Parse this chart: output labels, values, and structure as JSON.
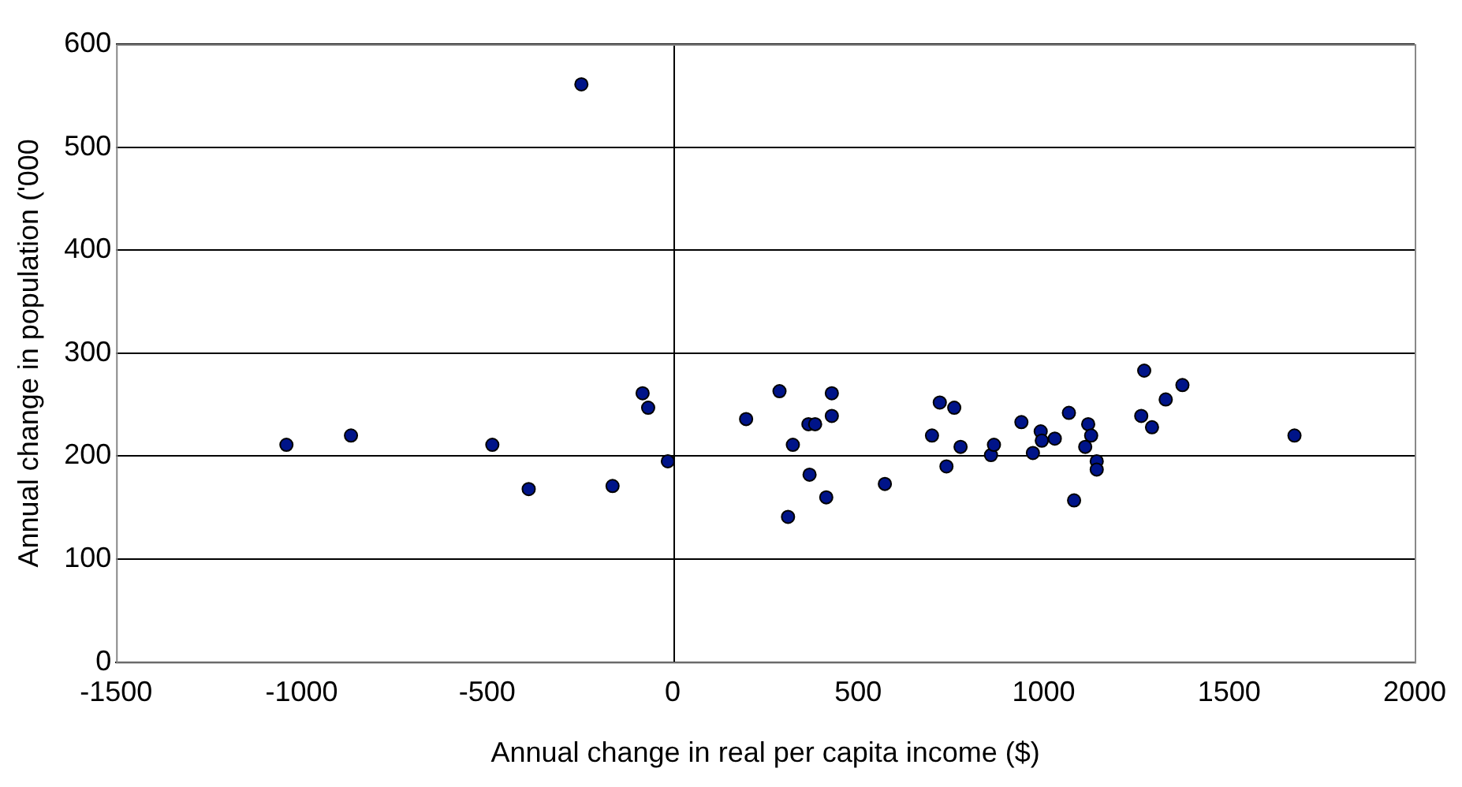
{
  "chart_data": {
    "type": "scatter",
    "xlabel": "Annual change in real per capita income ($)",
    "ylabel": "Annual change in population ('000",
    "xlim": [
      -1500,
      2000
    ],
    "xticks": [
      -1500,
      -1000,
      -500,
      0,
      500,
      1000,
      1500,
      2000
    ],
    "ylim": [
      0,
      600
    ],
    "yticks": [
      0,
      100,
      200,
      300,
      400,
      500,
      600
    ],
    "grid": "y",
    "marker": "circle",
    "ref_lines": [
      {
        "axis": "x",
        "value": 0,
        "color": "#000000"
      }
    ],
    "series": [
      {
        "color": "#001489",
        "x": [
          -246,
          -1041,
          -867,
          -486,
          -388,
          -162,
          -81,
          -66,
          -13,
          198,
          288,
          311,
          324,
          369,
          366,
          384,
          414,
          429,
          429,
          572,
          699,
          720,
          759,
          738,
          776,
          858,
          866,
          940,
          971,
          992,
          995,
          1030,
          1068,
          1082,
          1120,
          1128,
          1112,
          1143,
          1143,
          1271,
          1263,
          1292,
          1329,
          1374,
          1676
        ],
        "values": [
          561,
          211,
          220,
          211,
          168,
          171,
          261,
          247,
          195,
          236,
          263,
          141,
          211,
          182,
          231,
          231,
          160,
          261,
          239,
          173,
          220,
          252,
          247,
          190,
          209,
          201,
          211,
          233,
          203,
          224,
          215,
          217,
          242,
          157,
          231,
          220,
          209,
          195,
          187,
          283,
          239,
          228,
          255,
          269,
          220
        ]
      }
    ]
  }
}
